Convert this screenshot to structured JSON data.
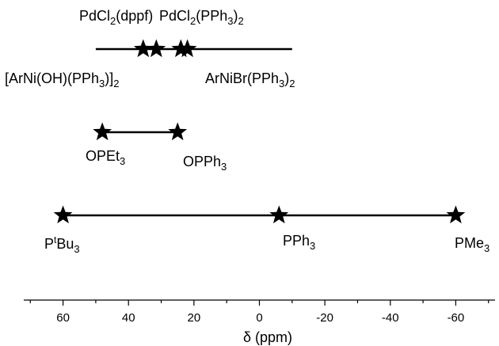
{
  "chart_data": {
    "type": "scatter",
    "xlabel": "δ (ppm)",
    "xlim": [
      72,
      -72
    ],
    "x_ticks": [
      60,
      40,
      20,
      0,
      -20,
      -40,
      -60
    ],
    "tick_labels": [
      "60",
      "40",
      "20",
      "0",
      "-20",
      "-40",
      "-60"
    ],
    "grid": false,
    "rows": [
      {
        "line_range": [
          50,
          -10
        ],
        "points": [
          {
            "label": "PdCl₂(dppf)",
            "x": 35.5
          },
          {
            "label": "PdCl₂(PPh₃)₂",
            "x": 24
          },
          {
            "label": "[ArNi(OH)(PPh₃)]₂",
            "x": 31.5
          },
          {
            "label": "ArNiBr(PPh₃)₂",
            "x": 22
          }
        ]
      },
      {
        "line_range": [
          48,
          25
        ],
        "points": [
          {
            "label": "OPEt₃",
            "x": 48
          },
          {
            "label": "OPPh₃",
            "x": 25
          }
        ]
      },
      {
        "line_range": [
          60,
          -60
        ],
        "points": [
          {
            "label": "PᵗBu₃",
            "x": 60
          },
          {
            "label": "PPh₃",
            "x": -6
          },
          {
            "label": "PMe₃",
            "x": -60
          }
        ]
      }
    ]
  }
}
